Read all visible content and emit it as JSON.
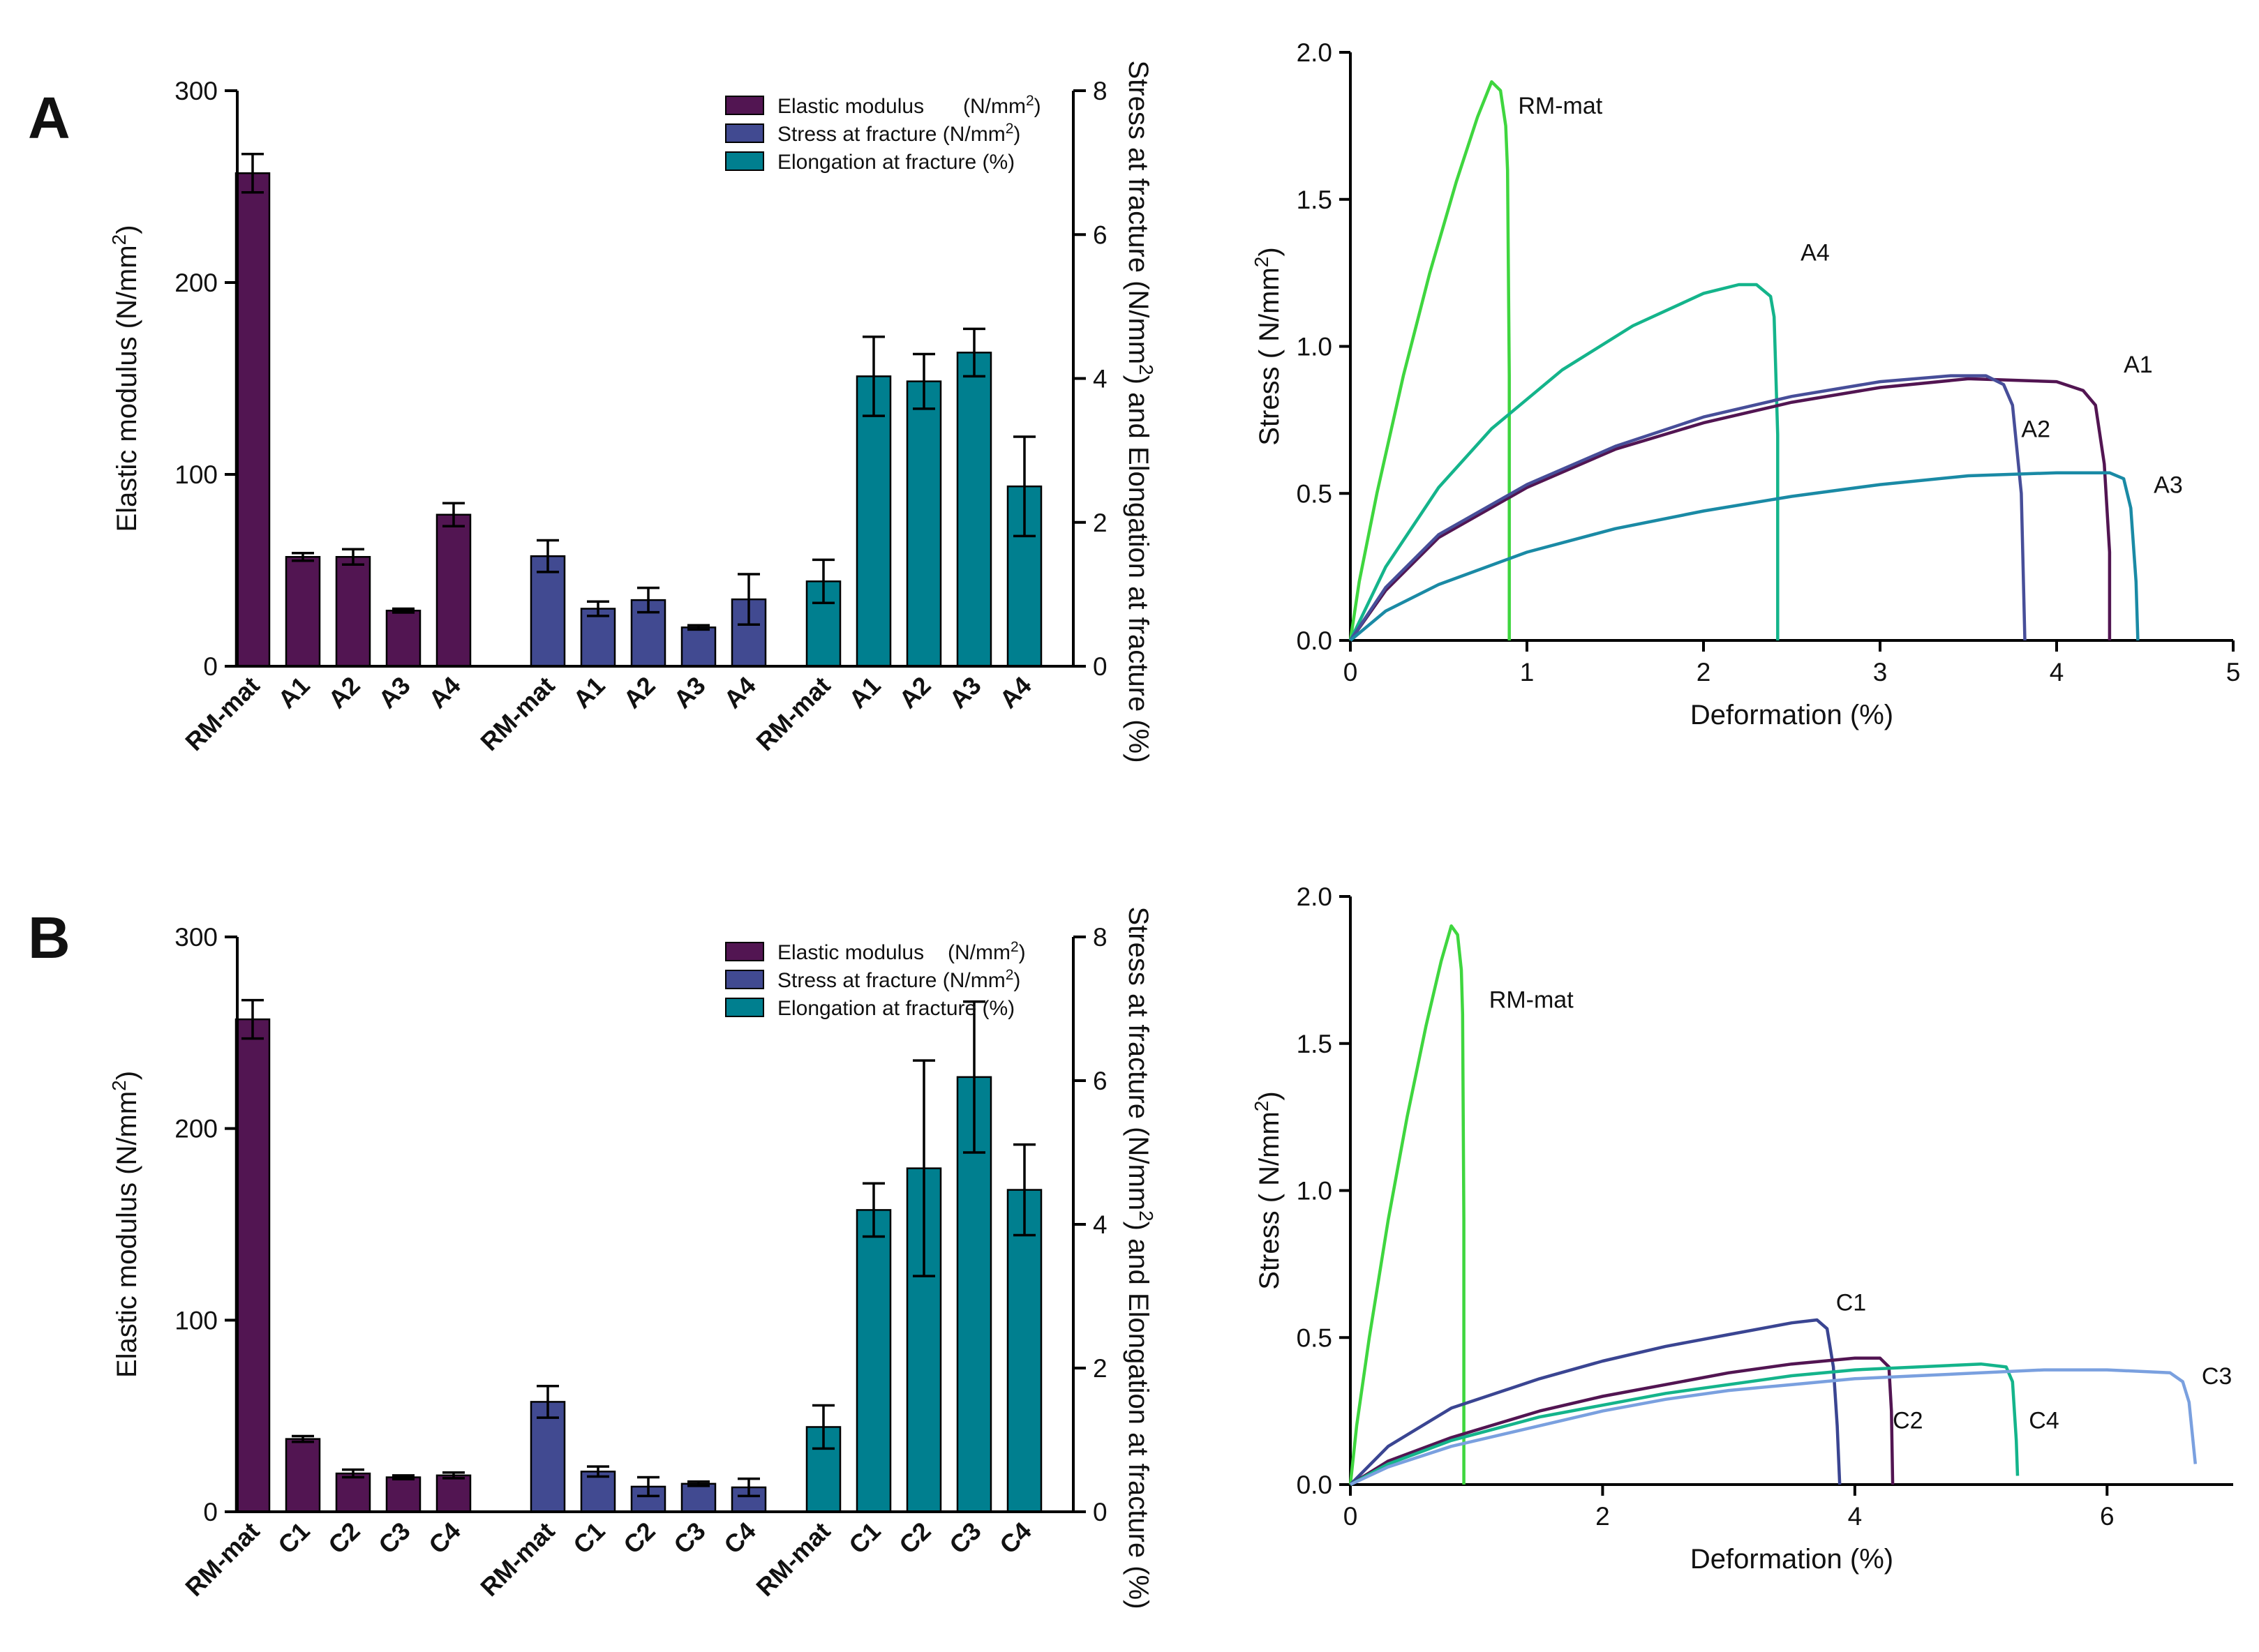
{
  "colors": {
    "elastic": "#521552",
    "stress": "#414a91",
    "elongation": "#007f8f",
    "curves": {
      "RM-mat": "#3fd63f",
      "A1": "#521552",
      "A2": "#474e99",
      "A3": "#1a8aa5",
      "A4": "#14b48b",
      "C1": "#3a4592",
      "C2": "#521552",
      "C3": "#7aa0df",
      "C4": "#14b48b"
    }
  },
  "chart_data": [
    {
      "id": "A-bar",
      "panel": "A",
      "type": "bar",
      "title": "",
      "ylabel_left": "Elastic modulus (N/mm²)",
      "ylabel_right": "Stress at fracture (N/mm²) and Elongation at fracture (%)",
      "ylim_left": [
        0,
        300
      ],
      "yticks_left": [
        0,
        100,
        200,
        300
      ],
      "ylim_right": [
        0,
        8
      ],
      "yticks_right": [
        0,
        2,
        4,
        6,
        8
      ],
      "legend": [
        {
          "label": "Elastic modulus",
          "unit": "(N/mm²)",
          "color_key": "elastic"
        },
        {
          "label": "Stress at fracture (N/mm²)",
          "unit": "",
          "color_key": "stress"
        },
        {
          "label": "Elongation at fracture (%)",
          "unit": "",
          "color_key": "elongation"
        }
      ],
      "categories": [
        "RM-mat",
        "A1",
        "A2",
        "A3",
        "A4"
      ],
      "series": [
        {
          "name": "Elastic modulus",
          "axis": "left",
          "color_key": "elastic",
          "values": [
            257,
            57,
            57,
            29,
            79
          ],
          "errors": [
            10,
            2,
            4,
            1,
            6
          ]
        },
        {
          "name": "Stress at fracture",
          "axis": "right",
          "color_key": "stress",
          "values": [
            1.53,
            0.8,
            0.92,
            0.54,
            0.93
          ],
          "errors": [
            0.22,
            0.1,
            0.17,
            0.03,
            0.35
          ]
        },
        {
          "name": "Elongation at fracture",
          "axis": "right",
          "color_key": "elongation",
          "values": [
            1.18,
            4.03,
            3.96,
            4.36,
            2.5
          ],
          "errors": [
            0.3,
            0.55,
            0.38,
            0.33,
            0.69
          ]
        }
      ]
    },
    {
      "id": "A-line",
      "panel": "A",
      "type": "line",
      "title": "",
      "xlabel": "Deformation (%)",
      "ylabel": "Stress ( N/mm²)",
      "xlim": [
        0,
        5
      ],
      "ylim": [
        0,
        2.0
      ],
      "xticks": [
        0,
        1,
        2,
        3,
        4,
        5
      ],
      "yticks": [
        0.0,
        0.5,
        1.0,
        1.5,
        2.0
      ],
      "series": [
        {
          "name": "RM-mat",
          "label_pos": [
            0.95,
            1.82
          ],
          "points": [
            [
              0,
              0
            ],
            [
              0.05,
              0.2
            ],
            [
              0.15,
              0.5
            ],
            [
              0.3,
              0.9
            ],
            [
              0.45,
              1.25
            ],
            [
              0.6,
              1.56
            ],
            [
              0.72,
              1.78
            ],
            [
              0.8,
              1.9
            ],
            [
              0.85,
              1.87
            ],
            [
              0.88,
              1.75
            ],
            [
              0.89,
              1.6
            ],
            [
              0.9,
              0.9
            ],
            [
              0.9,
              0
            ]
          ]
        },
        {
          "name": "A4",
          "label_pos": [
            2.55,
            1.32
          ],
          "points": [
            [
              0,
              0
            ],
            [
              0.2,
              0.25
            ],
            [
              0.5,
              0.52
            ],
            [
              0.8,
              0.72
            ],
            [
              1.2,
              0.92
            ],
            [
              1.6,
              1.07
            ],
            [
              2.0,
              1.18
            ],
            [
              2.2,
              1.21
            ],
            [
              2.3,
              1.21
            ],
            [
              2.38,
              1.17
            ],
            [
              2.4,
              1.1
            ],
            [
              2.42,
              0.7
            ],
            [
              2.42,
              0
            ]
          ]
        },
        {
          "name": "A1",
          "label_pos": [
            4.38,
            0.94
          ],
          "points": [
            [
              0,
              0
            ],
            [
              0.2,
              0.17
            ],
            [
              0.5,
              0.35
            ],
            [
              1.0,
              0.52
            ],
            [
              1.5,
              0.65
            ],
            [
              2.0,
              0.74
            ],
            [
              2.5,
              0.81
            ],
            [
              3.0,
              0.86
            ],
            [
              3.5,
              0.89
            ],
            [
              4.0,
              0.88
            ],
            [
              4.15,
              0.85
            ],
            [
              4.22,
              0.8
            ],
            [
              4.27,
              0.6
            ],
            [
              4.3,
              0.3
            ],
            [
              4.3,
              0
            ]
          ]
        },
        {
          "name": "A2",
          "label_pos": [
            3.8,
            0.72
          ],
          "points": [
            [
              0,
              0
            ],
            [
              0.2,
              0.18
            ],
            [
              0.5,
              0.36
            ],
            [
              1.0,
              0.53
            ],
            [
              1.5,
              0.66
            ],
            [
              2.0,
              0.76
            ],
            [
              2.5,
              0.83
            ],
            [
              3.0,
              0.88
            ],
            [
              3.4,
              0.9
            ],
            [
              3.6,
              0.9
            ],
            [
              3.7,
              0.87
            ],
            [
              3.75,
              0.8
            ],
            [
              3.8,
              0.5
            ],
            [
              3.82,
              0
            ]
          ]
        },
        {
          "name": "A3",
          "label_pos": [
            4.55,
            0.53
          ],
          "points": [
            [
              0,
              0
            ],
            [
              0.2,
              0.1
            ],
            [
              0.5,
              0.19
            ],
            [
              1.0,
              0.3
            ],
            [
              1.5,
              0.38
            ],
            [
              2.0,
              0.44
            ],
            [
              2.5,
              0.49
            ],
            [
              3.0,
              0.53
            ],
            [
              3.5,
              0.56
            ],
            [
              4.0,
              0.57
            ],
            [
              4.3,
              0.57
            ],
            [
              4.38,
              0.55
            ],
            [
              4.42,
              0.45
            ],
            [
              4.45,
              0.2
            ],
            [
              4.46,
              0
            ]
          ]
        }
      ]
    },
    {
      "id": "B-bar",
      "panel": "B",
      "type": "bar",
      "title": "",
      "ylabel_left": "Elastic modulus (N/mm²)",
      "ylabel_right": "Stress at fracture (N/mm²) and Elongation at fracture (%)",
      "ylim_left": [
        0,
        300
      ],
      "yticks_left": [
        0,
        100,
        200,
        300
      ],
      "ylim_right": [
        0,
        8
      ],
      "yticks_right": [
        0,
        2,
        4,
        6,
        8
      ],
      "legend": [
        {
          "label": "Elastic modulus",
          "unit": "(N/mm²)",
          "color_key": "elastic"
        },
        {
          "label": "Stress at fracture (N/mm²)",
          "unit": "",
          "color_key": "stress"
        },
        {
          "label": "Elongation at fracture (%)",
          "unit": "",
          "color_key": "elongation"
        }
      ],
      "categories": [
        "RM-mat",
        "C1",
        "C2",
        "C3",
        "C4"
      ],
      "series": [
        {
          "name": "Elastic modulus",
          "axis": "left",
          "color_key": "elastic",
          "values": [
            257,
            38,
            20,
            18,
            19
          ],
          "errors": [
            10,
            1.5,
            2,
            1,
            1.5
          ]
        },
        {
          "name": "Stress at fracture",
          "axis": "right",
          "color_key": "stress",
          "values": [
            1.53,
            0.56,
            0.35,
            0.39,
            0.34
          ],
          "errors": [
            0.22,
            0.07,
            0.13,
            0.03,
            0.12
          ]
        },
        {
          "name": "Elongation at fracture",
          "axis": "right",
          "color_key": "elongation",
          "values": [
            1.18,
            4.2,
            4.78,
            6.05,
            4.48
          ],
          "errors": [
            0.3,
            0.37,
            1.5,
            1.05,
            0.63
          ]
        }
      ]
    },
    {
      "id": "B-line",
      "panel": "B",
      "type": "line",
      "title": "",
      "xlabel": "Deformation (%)",
      "ylabel": "Stress ( N/mm²)",
      "xlim": [
        0,
        7
      ],
      "ylim": [
        0,
        2.0
      ],
      "xticks": [
        0,
        2,
        4,
        6
      ],
      "yticks": [
        0.0,
        0.5,
        1.0,
        1.5,
        2.0
      ],
      "series": [
        {
          "name": "RM-mat",
          "label_pos": [
            1.1,
            1.65
          ],
          "points": [
            [
              0,
              0
            ],
            [
              0.05,
              0.2
            ],
            [
              0.15,
              0.5
            ],
            [
              0.3,
              0.9
            ],
            [
              0.45,
              1.25
            ],
            [
              0.6,
              1.56
            ],
            [
              0.72,
              1.78
            ],
            [
              0.8,
              1.9
            ],
            [
              0.85,
              1.87
            ],
            [
              0.88,
              1.75
            ],
            [
              0.89,
              1.6
            ],
            [
              0.9,
              0.9
            ],
            [
              0.9,
              0
            ]
          ]
        },
        {
          "name": "C1",
          "label_pos": [
            3.85,
            0.62
          ],
          "points": [
            [
              0,
              0
            ],
            [
              0.3,
              0.13
            ],
            [
              0.8,
              0.26
            ],
            [
              1.5,
              0.36
            ],
            [
              2.0,
              0.42
            ],
            [
              2.5,
              0.47
            ],
            [
              3.0,
              0.51
            ],
            [
              3.5,
              0.55
            ],
            [
              3.7,
              0.56
            ],
            [
              3.78,
              0.53
            ],
            [
              3.83,
              0.4
            ],
            [
              3.86,
              0.2
            ],
            [
              3.88,
              0
            ]
          ]
        },
        {
          "name": "C2",
          "label_pos": [
            4.3,
            0.22
          ],
          "points": [
            [
              0,
              0
            ],
            [
              0.3,
              0.08
            ],
            [
              0.8,
              0.16
            ],
            [
              1.5,
              0.25
            ],
            [
              2.0,
              0.3
            ],
            [
              2.5,
              0.34
            ],
            [
              3.0,
              0.38
            ],
            [
              3.5,
              0.41
            ],
            [
              4.0,
              0.43
            ],
            [
              4.2,
              0.43
            ],
            [
              4.27,
              0.4
            ],
            [
              4.29,
              0.25
            ],
            [
              4.3,
              0
            ]
          ]
        },
        {
          "name": "C4",
          "label_pos": [
            5.38,
            0.22
          ],
          "points": [
            [
              0,
              0
            ],
            [
              0.3,
              0.07
            ],
            [
              0.8,
              0.15
            ],
            [
              1.5,
              0.23
            ],
            [
              2.0,
              0.27
            ],
            [
              2.5,
              0.31
            ],
            [
              3.0,
              0.34
            ],
            [
              3.5,
              0.37
            ],
            [
              4.0,
              0.39
            ],
            [
              4.5,
              0.4
            ],
            [
              5.0,
              0.41
            ],
            [
              5.2,
              0.4
            ],
            [
              5.25,
              0.35
            ],
            [
              5.28,
              0.15
            ],
            [
              5.29,
              0.03
            ]
          ]
        },
        {
          "name": "C3",
          "label_pos": [
            6.75,
            0.37
          ],
          "points": [
            [
              0,
              0
            ],
            [
              0.3,
              0.06
            ],
            [
              0.8,
              0.13
            ],
            [
              1.5,
              0.2
            ],
            [
              2.0,
              0.25
            ],
            [
              2.5,
              0.29
            ],
            [
              3.0,
              0.32
            ],
            [
              3.5,
              0.34
            ],
            [
              4.0,
              0.36
            ],
            [
              4.5,
              0.37
            ],
            [
              5.0,
              0.38
            ],
            [
              5.5,
              0.39
            ],
            [
              6.0,
              0.39
            ],
            [
              6.5,
              0.38
            ],
            [
              6.6,
              0.35
            ],
            [
              6.65,
              0.28
            ],
            [
              6.7,
              0.07
            ]
          ]
        }
      ]
    }
  ]
}
